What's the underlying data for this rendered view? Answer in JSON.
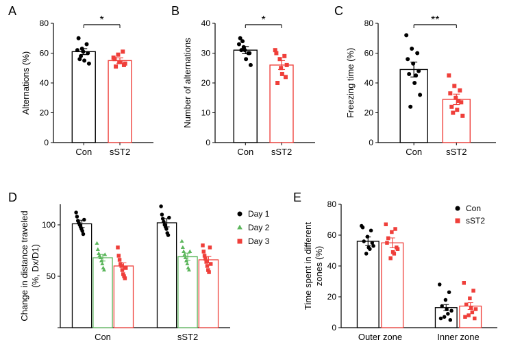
{
  "panelA": {
    "label": "A",
    "ylabel": "Alternations (%)",
    "ylim": [
      0,
      80
    ],
    "ytick_step": 20,
    "categories": [
      "Con",
      "sST2"
    ],
    "bars": [
      {
        "mean": 61,
        "sem": 2.0,
        "color": "#ffffff",
        "border": "#000000",
        "points": [
          62,
          63,
          66,
          70,
          61,
          60,
          56,
          55,
          53,
          58
        ],
        "point_color": "#000000",
        "point_shape": "circle"
      },
      {
        "mean": 55,
        "sem": 1.8,
        "color": "#ffffff",
        "border": "#ef3f3a",
        "points": [
          57,
          59,
          61,
          56,
          54,
          52,
          51,
          54,
          53
        ],
        "point_color": "#ef3f3a",
        "point_shape": "square"
      }
    ],
    "sig": {
      "label": "*",
      "groups": [
        0,
        1
      ]
    }
  },
  "panelB": {
    "label": "B",
    "ylabel": "Number of alternations",
    "ylim": [
      0,
      40
    ],
    "ytick_step": 10,
    "categories": [
      "Con",
      "sST2"
    ],
    "bars": [
      {
        "mean": 31,
        "sem": 1.2,
        "color": "#ffffff",
        "border": "#000000",
        "points": [
          33,
          32,
          30,
          35,
          31,
          30,
          31,
          28,
          26,
          34
        ],
        "point_color": "#000000",
        "point_shape": "circle"
      },
      {
        "mean": 26,
        "sem": 1.5,
        "color": "#ffffff",
        "border": "#ef3f3a",
        "points": [
          31,
          28,
          29,
          30,
          25,
          22,
          20,
          23,
          26
        ],
        "point_color": "#ef3f3a",
        "point_shape": "square"
      }
    ],
    "sig": {
      "label": "*",
      "groups": [
        0,
        1
      ]
    }
  },
  "panelC": {
    "label": "C",
    "ylabel": "Freezing time (%)",
    "ylim": [
      0,
      80
    ],
    "ytick_step": 20,
    "categories": [
      "Con",
      "sST2"
    ],
    "bars": [
      {
        "mean": 49,
        "sem": 5.0,
        "color": "#ffffff",
        "border": "#000000",
        "points": [
          72,
          63,
          60,
          56,
          53,
          48,
          46,
          40,
          32,
          24,
          45
        ],
        "point_color": "#000000",
        "point_shape": "circle"
      },
      {
        "mean": 29,
        "sem": 3.5,
        "color": "#ffffff",
        "border": "#ef3f3a",
        "points": [
          45,
          38,
          35,
          33,
          30,
          27,
          24,
          22,
          18,
          20,
          28
        ],
        "point_color": "#ef3f3a",
        "point_shape": "square"
      }
    ],
    "sig": {
      "label": "**",
      "groups": [
        0,
        1
      ]
    }
  },
  "panelD": {
    "label": "D",
    "ylabel_line1": "Change in distance traveled",
    "ylabel_line2": "(%, Dx/D1)",
    "ylim": [
      0,
      120
    ],
    "yticks": [
      50,
      100
    ],
    "groups": [
      "Con",
      "sST2"
    ],
    "days": [
      "Day 1",
      "Day 2",
      "Day 3"
    ],
    "day_colors": [
      "#000000",
      "#5cb65c",
      "#ef3f3a"
    ],
    "day_shapes": [
      "circle",
      "triangle",
      "square"
    ],
    "bars": [
      [
        {
          "mean": 101,
          "sem": 3.5,
          "points": [
            112,
            108,
            104,
            102,
            100,
            98,
            96,
            94,
            91,
            105
          ]
        },
        {
          "mean": 68,
          "sem": 3.2,
          "points": [
            82,
            76,
            72,
            70,
            68,
            65,
            62,
            58,
            56,
            71
          ]
        },
        {
          "mean": 60,
          "sem": 3.0,
          "points": [
            78,
            70,
            66,
            62,
            60,
            56,
            52,
            50,
            48,
            58
          ]
        }
      ],
      [
        {
          "mean": 102,
          "sem": 4.0,
          "points": [
            118,
            110,
            106,
            103,
            100,
            98,
            96,
            92,
            90,
            107
          ]
        },
        {
          "mean": 69,
          "sem": 3.5,
          "points": [
            84,
            78,
            74,
            71,
            68,
            65,
            62,
            58,
            56,
            74
          ]
        },
        {
          "mean": 66,
          "sem": 3.2,
          "points": [
            80,
            74,
            70,
            67,
            64,
            60,
            56,
            54,
            78,
            62
          ]
        }
      ]
    ],
    "legend": [
      "Day 1",
      "Day 2",
      "Day 3"
    ]
  },
  "panelE": {
    "label": "E",
    "ylabel_line1": "Time spent in different",
    "ylabel_line2": "zones (%)",
    "ylim": [
      0,
      80
    ],
    "ytick_step": 20,
    "zones": [
      "Outer zone",
      "Inner zone"
    ],
    "groups": [
      "Con",
      "sST2"
    ],
    "group_colors": [
      "#000000",
      "#ef3f3a"
    ],
    "group_shapes": [
      "circle",
      "square"
    ],
    "bars": [
      [
        {
          "mean": 56,
          "sem": 2.8,
          "points": [
            66,
            63,
            59,
            56,
            53,
            51,
            48,
            65,
            55,
            52
          ]
        },
        {
          "mean": 55,
          "sem": 3.2,
          "points": [
            67,
            64,
            62,
            58,
            51,
            48,
            45,
            55,
            52,
            49
          ]
        }
      ],
      [
        {
          "mean": 13,
          "sem": 2.0,
          "points": [
            28,
            23,
            18,
            14,
            11,
            9,
            7,
            6,
            5,
            12
          ]
        },
        {
          "mean": 14,
          "sem": 2.2,
          "points": [
            29,
            24,
            19,
            15,
            12,
            10,
            8,
            7,
            6,
            13
          ]
        }
      ]
    ],
    "legend": [
      "Con",
      "sST2"
    ]
  },
  "colors": {
    "black": "#000000",
    "red": "#ef3f3a",
    "green": "#5cb65c",
    "axis": "#000000"
  },
  "font_sizes": {
    "panel_label": 18,
    "axis_label": 13,
    "tick": 12,
    "legend": 12
  }
}
